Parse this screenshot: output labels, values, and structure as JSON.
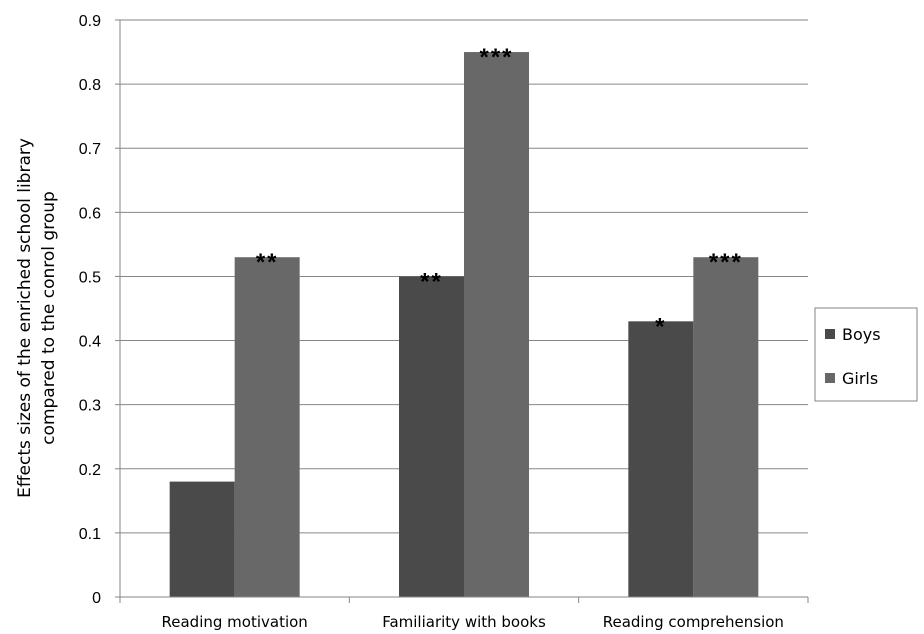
{
  "chart_data": {
    "type": "bar",
    "ylabel_line1": "Effects sizes of the enriched school library",
    "ylabel_line2": "compared to the conrol group",
    "xlabel": "",
    "ylim": [
      0,
      0.9
    ],
    "yticks": [
      "0",
      "0.1",
      "0.2",
      "0.3",
      "0.4",
      "0.5",
      "0.6",
      "0.7",
      "0.8",
      "0.9"
    ],
    "grid": true,
    "legend_position": "right",
    "categories": [
      "Reading motivation",
      "Familiarity with books",
      "Reading comprehension"
    ],
    "series": [
      {
        "name": "Boys",
        "color": "#4a4a4a",
        "values": [
          0.18,
          0.5,
          0.43
        ],
        "significance": [
          "",
          "**",
          "*"
        ]
      },
      {
        "name": "Girls",
        "color": "#686868",
        "values": [
          0.53,
          0.85,
          0.53
        ],
        "significance": [
          "**",
          "***",
          "***"
        ]
      }
    ]
  }
}
